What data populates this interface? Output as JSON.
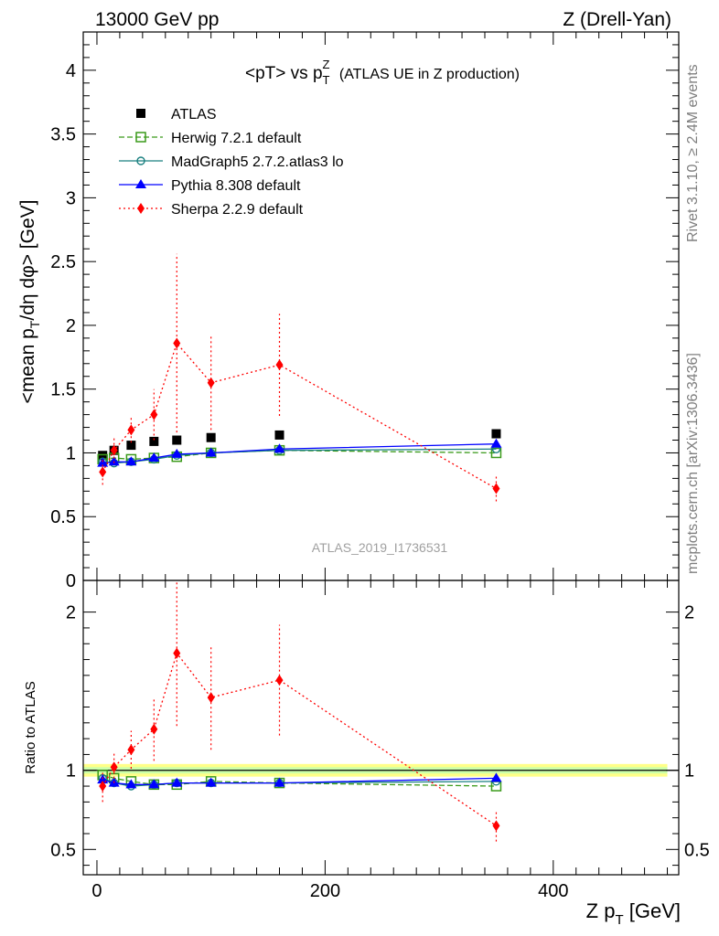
{
  "header": {
    "left": "13000 GeV pp",
    "right": "Z (Drell-Yan)"
  },
  "side_labels": {
    "rivet": "Rivet 3.1.10, ≥ 2.4M events",
    "mcplots": "mcplots.cern.ch [arXiv:1306.3436]"
  },
  "chart_data": [
    {
      "type": "line",
      "title": "<pT> vs p_T^Z (ATLAS UE in Z production)",
      "xlabel": "Z p_T [GeV]",
      "ylabel": "<mean p_T/dη dφ> [GeV]",
      "watermark": "ATLAS_2019_I1736531",
      "xlim": [
        -12,
        510
      ],
      "ylim": [
        0,
        4.3
      ],
      "yticks": [
        0,
        0.5,
        1,
        1.5,
        2,
        2.5,
        3,
        3.5,
        4
      ],
      "ytick_labels": [
        "0",
        "0.5",
        "1",
        "1.5",
        "2",
        "2.5",
        "3",
        "3.5",
        "4"
      ],
      "legend_position": "top-left",
      "series": [
        {
          "name": "ATLAS",
          "color": "#000000",
          "marker": "square",
          "x": [
            5,
            15,
            30,
            50,
            70,
            100,
            160,
            350
          ],
          "y": [
            0.98,
            1.02,
            1.06,
            1.09,
            1.1,
            1.12,
            1.14,
            1.15
          ]
        },
        {
          "name": "Herwig 7.2.1 default",
          "color": "#3a9a1a",
          "marker": "open-square",
          "x": [
            5,
            15,
            30,
            50,
            70,
            100,
            160,
            350
          ],
          "y": [
            0.95,
            0.96,
            0.95,
            0.96,
            0.97,
            1.0,
            1.02,
            1.0
          ]
        },
        {
          "name": "MadGraph5 2.7.2.atlas3 lo",
          "color": "#1a8080",
          "marker": "open-circle",
          "x": [
            5,
            15,
            30,
            50,
            70,
            100,
            160,
            350
          ],
          "y": [
            0.93,
            0.92,
            0.93,
            0.95,
            0.98,
            1.0,
            1.02,
            1.03
          ]
        },
        {
          "name": "Pythia 8.308 default",
          "color": "#0000ff",
          "marker": "triangle",
          "x": [
            5,
            15,
            30,
            50,
            70,
            100,
            160,
            350
          ],
          "y": [
            0.92,
            0.93,
            0.93,
            0.96,
            0.99,
            1.0,
            1.03,
            1.07
          ]
        },
        {
          "name": "Sherpa 2.2.9 default",
          "color": "#ff0000",
          "marker": "diamond",
          "x": [
            5,
            15,
            30,
            50,
            70,
            100,
            160,
            350
          ],
          "y": [
            0.85,
            1.02,
            1.18,
            1.3,
            1.86,
            1.55,
            1.69,
            0.72
          ],
          "yerr": [
            0.1,
            0.1,
            0.1,
            0.2,
            0.7,
            0.37,
            0.4,
            0.1
          ]
        }
      ]
    },
    {
      "type": "line",
      "ylabel": "Ratio to ATLAS",
      "xlabel": "Z p_T [GeV]",
      "xlim": [
        -12,
        510
      ],
      "ylim": [
        0.34,
        2.2
      ],
      "xticks": [
        0,
        200,
        400
      ],
      "xtick_labels": [
        "0",
        "200",
        "400"
      ],
      "yticks": [
        0.5,
        1,
        2
      ],
      "ytick_labels": [
        "0.5",
        "1",
        "2"
      ],
      "reference_band": {
        "x": [
          -12,
          500
        ],
        "y": 1
      },
      "series": [
        {
          "name": "Herwig 7.2.1 default",
          "color": "#3a9a1a",
          "marker": "open-square",
          "x": [
            5,
            15,
            30,
            50,
            70,
            100,
            160,
            350
          ],
          "y": [
            0.97,
            0.95,
            0.93,
            0.91,
            0.91,
            0.93,
            0.92,
            0.9
          ]
        },
        {
          "name": "MadGraph5 2.7.2.atlas3 lo",
          "color": "#1a8080",
          "marker": "open-circle",
          "x": [
            5,
            15,
            30,
            50,
            70,
            100,
            160,
            350
          ],
          "y": [
            0.95,
            0.92,
            0.9,
            0.91,
            0.92,
            0.92,
            0.92,
            0.93
          ]
        },
        {
          "name": "Pythia 8.308 default",
          "color": "#0000ff",
          "marker": "triangle",
          "x": [
            5,
            15,
            30,
            50,
            70,
            100,
            160,
            350
          ],
          "y": [
            0.94,
            0.92,
            0.91,
            0.91,
            0.92,
            0.92,
            0.92,
            0.95
          ]
        },
        {
          "name": "Sherpa 2.2.9 default",
          "color": "#ff0000",
          "marker": "diamond",
          "x": [
            5,
            15,
            30,
            50,
            70,
            100,
            160,
            350
          ],
          "y": [
            0.9,
            1.02,
            1.13,
            1.26,
            1.74,
            1.46,
            1.57,
            0.65
          ],
          "yerr": [
            0.1,
            0.1,
            0.12,
            0.2,
            0.46,
            0.33,
            0.35,
            0.1
          ]
        }
      ]
    }
  ]
}
